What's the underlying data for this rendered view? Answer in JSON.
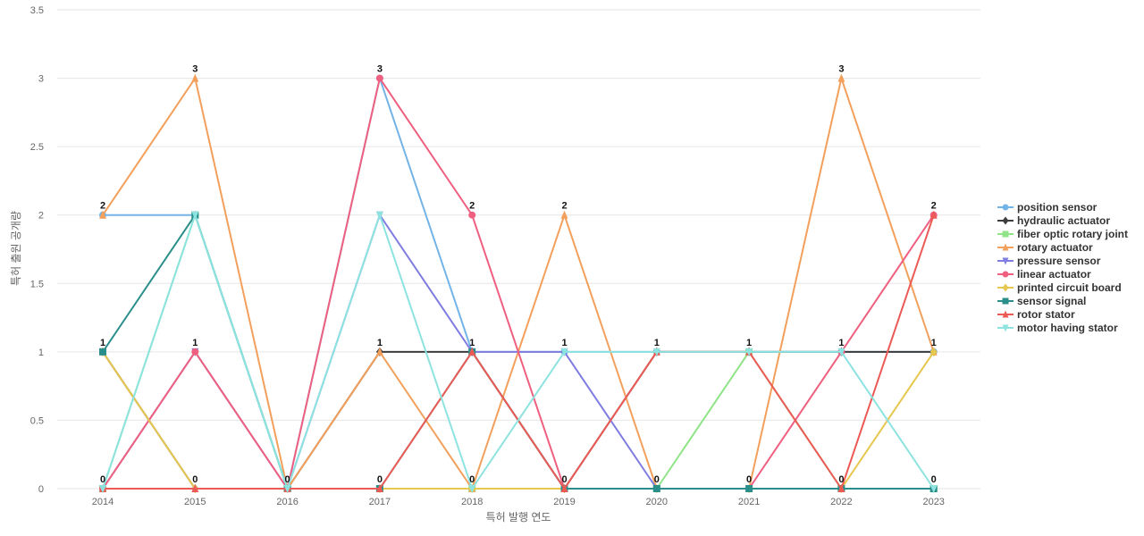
{
  "chart_data": {
    "type": "line",
    "title": "",
    "xlabel": "특허 발행 연도",
    "ylabel": "특허 출원 공개량",
    "x": [
      "2014",
      "2015",
      "2016",
      "2017",
      "2018",
      "2019",
      "2020",
      "2021",
      "2022",
      "2023"
    ],
    "ylim": [
      0,
      3.5
    ],
    "yticks": [
      "0",
      "0.5",
      "1",
      "1.5",
      "2",
      "2.5",
      "3",
      "3.5"
    ],
    "grid": true,
    "legend_position": "right",
    "series": [
      {
        "name": "position sensor",
        "color": "#73b4e8",
        "marker": "circle",
        "values": [
          2,
          2,
          0,
          3,
          1,
          1,
          1,
          1,
          1,
          1
        ]
      },
      {
        "name": "hydraulic actuator",
        "color": "#3d3d3d",
        "marker": "diamond",
        "values": [
          1,
          0,
          0,
          1,
          1,
          0,
          1,
          1,
          1,
          1
        ]
      },
      {
        "name": "fiber optic rotary joint",
        "color": "#90e487",
        "marker": "square",
        "values": [
          0,
          2,
          0,
          0,
          0,
          0,
          0,
          1,
          0,
          0
        ]
      },
      {
        "name": "rotary actuator",
        "color": "#f2a05c",
        "marker": "triangle-up",
        "values": [
          2,
          3,
          0,
          1,
          0,
          2,
          0,
          0,
          3,
          1
        ]
      },
      {
        "name": "pressure sensor",
        "color": "#7f7de0",
        "marker": "triangle-down",
        "values": [
          0,
          1,
          0,
          2,
          1,
          1,
          0,
          0,
          0,
          0
        ]
      },
      {
        "name": "linear actuator",
        "color": "#ef5f7f",
        "marker": "circle",
        "values": [
          0,
          1,
          0,
          3,
          2,
          0,
          0,
          0,
          1,
          2
        ]
      },
      {
        "name": "printed circuit board",
        "color": "#e6c74f",
        "marker": "diamond",
        "values": [
          1,
          0,
          0,
          0,
          0,
          0,
          0,
          0,
          0,
          1
        ]
      },
      {
        "name": "sensor signal",
        "color": "#2a8e8a",
        "marker": "square",
        "values": [
          1,
          2,
          0,
          0,
          1,
          0,
          0,
          0,
          0,
          0
        ]
      },
      {
        "name": "rotor stator",
        "color": "#ec5a56",
        "marker": "triangle-up",
        "values": [
          0,
          0,
          0,
          0,
          1,
          0,
          1,
          1,
          0,
          2
        ]
      },
      {
        "name": "motor having stator",
        "color": "#8de3e0",
        "marker": "triangle-down",
        "values": [
          0,
          2,
          0,
          2,
          0,
          1,
          1,
          1,
          1,
          0
        ]
      }
    ],
    "data_labels": [
      2,
      3,
      0,
      3,
      2,
      2,
      1,
      1,
      3,
      2
    ]
  }
}
